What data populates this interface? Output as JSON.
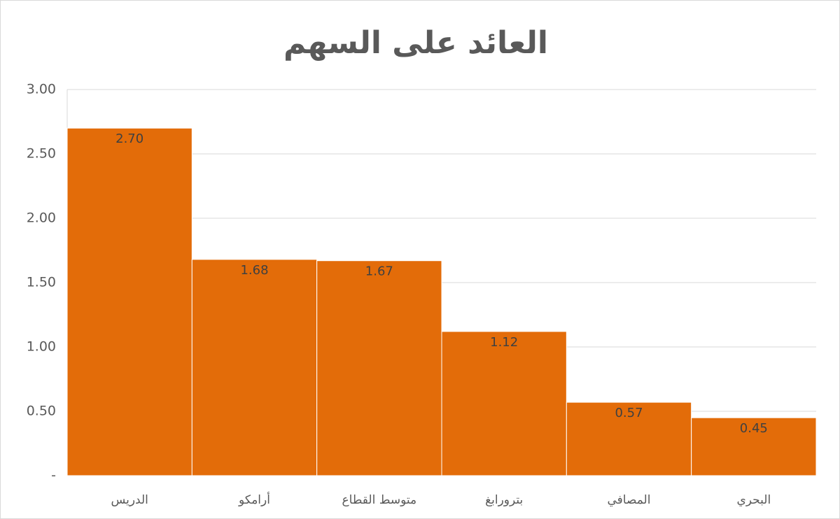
{
  "chart_data": {
    "type": "bar",
    "title": "العائد على السهم",
    "categories": [
      "الدريس",
      "أرامكو",
      "متوسط القطاع",
      "بترورابغ",
      "المصافي",
      "البحري"
    ],
    "values": [
      2.7,
      1.68,
      1.67,
      1.12,
      0.57,
      0.45
    ],
    "value_labels": [
      "2.70",
      "1.68",
      "1.67",
      "1.12",
      "0.57",
      "0.45"
    ],
    "color": "#e36c09",
    "ylim": [
      0,
      3
    ],
    "yticks": [
      {
        "value": 0,
        "label": "-"
      },
      {
        "value": 0.5,
        "label": "0.50"
      },
      {
        "value": 1,
        "label": "1.00"
      },
      {
        "value": 1.5,
        "label": "1.50"
      },
      {
        "value": 2,
        "label": "2.00"
      },
      {
        "value": 2.5,
        "label": "2.50"
      },
      {
        "value": 3,
        "label": "3.00"
      }
    ],
    "grid": true
  }
}
